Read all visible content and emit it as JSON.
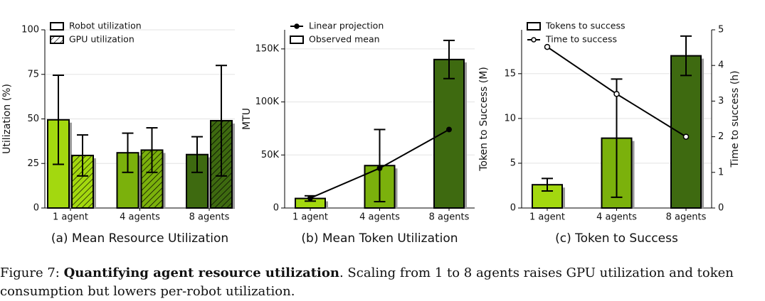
{
  "chart_data": [
    {
      "type": "bar",
      "title": "(a) Mean Resource Utilization",
      "ylabel": "Utilization (%)",
      "categories": [
        "1 agent",
        "4 agents",
        "8 agents"
      ],
      "ylim": [
        0,
        100
      ],
      "yticks": [
        0,
        25,
        50,
        75,
        100
      ],
      "grid": true,
      "legend": "upper left",
      "series": [
        {
          "name": "Robot utilization",
          "type": "bar",
          "hatch": false,
          "colors": [
            "#a3d80f",
            "#7bb10c",
            "#3e6a10"
          ],
          "values": [
            49.5,
            31,
            30
          ],
          "errors": [
            25,
            11,
            10
          ]
        },
        {
          "name": "GPU utilization",
          "type": "bar",
          "hatch": true,
          "colors": [
            "#a3d80f",
            "#7bb10c",
            "#3e6a10"
          ],
          "values": [
            29.5,
            32.5,
            49
          ],
          "errors": [
            11.5,
            12.5,
            31
          ]
        }
      ]
    },
    {
      "type": "bar",
      "title": "(b) Mean Token Utilization",
      "ylabel": "MTU",
      "categories": [
        "1 agent",
        "4 agents",
        "8 agents"
      ],
      "ylim": [
        0,
        168000
      ],
      "yticks": [
        0,
        {
          "value": 50000,
          "label": "50K"
        },
        {
          "value": 100000,
          "label": "100K"
        },
        {
          "value": 150000,
          "label": "150K"
        }
      ],
      "grid": true,
      "legend": "upper left",
      "series": [
        {
          "name": "Linear projection",
          "type": "line",
          "marker": "filled",
          "color": "#000000",
          "values": [
            9300,
            37500,
            74000
          ]
        },
        {
          "name": "Observed mean",
          "type": "bar",
          "hatch": false,
          "colors": [
            "#a3d80f",
            "#7bb10c",
            "#3e6a10"
          ],
          "values": [
            9000,
            40000,
            140000
          ],
          "errors": [
            2500,
            34000,
            18000
          ]
        }
      ]
    },
    {
      "type": "bar",
      "title": "(c) Token to Success",
      "ylabel": "Token to Success (M)",
      "y2label": "Time to success (h)",
      "categories": [
        "1 agent",
        "4 agents",
        "8 agents"
      ],
      "ylim": [
        0,
        19.9
      ],
      "yticks": [
        0,
        5,
        10,
        15
      ],
      "y2lim": [
        0,
        5
      ],
      "y2ticks": [
        0,
        1,
        2,
        3,
        4,
        5
      ],
      "grid": true,
      "legend": "upper left",
      "series": [
        {
          "name": "Tokens to success",
          "type": "bar",
          "hatch": false,
          "colors": [
            "#a3d80f",
            "#7bb10c",
            "#3e6a10"
          ],
          "values": [
            2.6,
            7.8,
            17
          ],
          "errors": [
            0.7,
            6.6,
            2.2
          ]
        },
        {
          "name": "Time to success",
          "type": "line",
          "axis": "y2",
          "marker": "open",
          "color": "#000000",
          "values": [
            4.52,
            3.2,
            2.0
          ]
        }
      ]
    }
  ],
  "caption": {
    "label": "Figure 7:",
    "title": "Quantifying agent resource utilization",
    "text": ". Scaling from 1 to 8 agents raises GPU utilization and token consumption but lowers per-robot utilization."
  }
}
